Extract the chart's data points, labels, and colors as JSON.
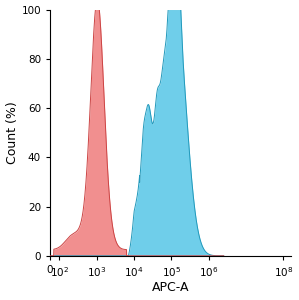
{
  "xlabel": "APC-A",
  "ylabel": "Count (%)",
  "ylim": [
    0,
    100
  ],
  "yticks": [
    0,
    20,
    40,
    60,
    80,
    100
  ],
  "red_color": "#F08080",
  "red_edge": "#CC4444",
  "blue_color": "#5BC8E8",
  "blue_edge": "#2299BB",
  "background": "#ffffff",
  "red_peak_log": 3.02,
  "red_peak_sigma": 0.175,
  "blue_peak_log": 5.12,
  "blue_peak_sigma": 0.28
}
